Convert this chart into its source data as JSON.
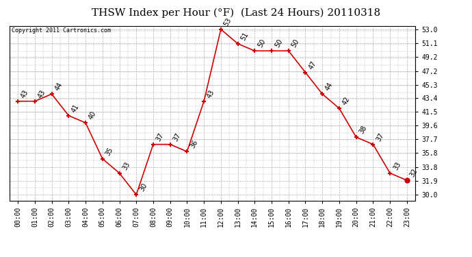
{
  "title": "THSW Index per Hour (°F)  (Last 24 Hours) 20110318",
  "copyright": "Copyright 2011 Cartronics.com",
  "hours": [
    "00:00",
    "01:00",
    "02:00",
    "03:00",
    "04:00",
    "05:00",
    "06:00",
    "07:00",
    "08:00",
    "09:00",
    "10:00",
    "11:00",
    "12:00",
    "13:00",
    "14:00",
    "15:00",
    "16:00",
    "17:00",
    "18:00",
    "19:00",
    "20:00",
    "21:00",
    "22:00",
    "23:00"
  ],
  "values": [
    43,
    43,
    44,
    41,
    40,
    35,
    33,
    30,
    37,
    37,
    36,
    43,
    53,
    51,
    50,
    50,
    50,
    47,
    44,
    42,
    38,
    37,
    33,
    32
  ],
  "ylim_min": 30.0,
  "ylim_max": 53.0,
  "yticks": [
    30.0,
    31.9,
    33.8,
    35.8,
    37.7,
    39.6,
    41.5,
    43.4,
    45.3,
    47.2,
    49.2,
    51.1,
    53.0
  ],
  "line_color": "#cc0000",
  "marker_color": "#cc0000",
  "bg_color": "#ffffff",
  "plot_bg": "#ffffff",
  "grid_color": "#b0b0b0",
  "title_fontsize": 11,
  "label_fontsize": 7,
  "annotation_fontsize": 7,
  "copyright_fontsize": 6
}
